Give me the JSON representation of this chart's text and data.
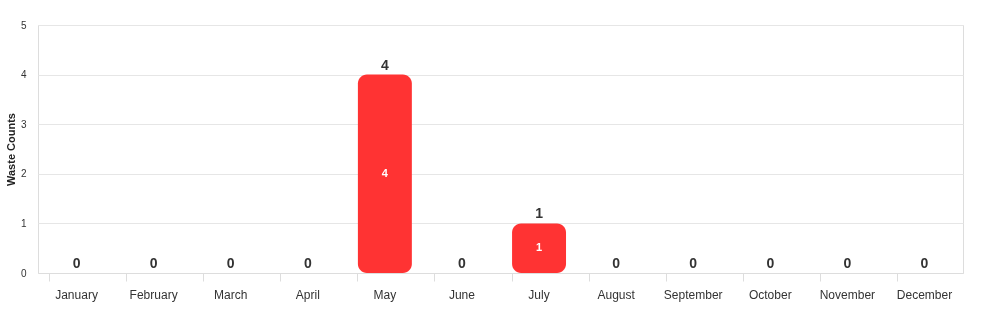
{
  "chart_data": {
    "type": "bar",
    "ylabel": "Waste Counts",
    "categories": [
      "January",
      "February",
      "March",
      "April",
      "May",
      "June",
      "July",
      "August",
      "September",
      "October",
      "November",
      "December"
    ],
    "values": [
      0,
      0,
      0,
      0,
      4,
      0,
      1,
      0,
      0,
      0,
      0,
      0
    ],
    "color": "#ff3333",
    "ylim": [
      0,
      5
    ],
    "yticks": [
      0,
      1,
      2,
      3,
      4,
      5
    ],
    "grid": "y",
    "value_labels": [
      "0",
      "0",
      "0",
      "0",
      "4",
      "0",
      "1",
      "0",
      "0",
      "0",
      "0",
      "0"
    ],
    "annotations": [
      "4",
      "1"
    ]
  }
}
